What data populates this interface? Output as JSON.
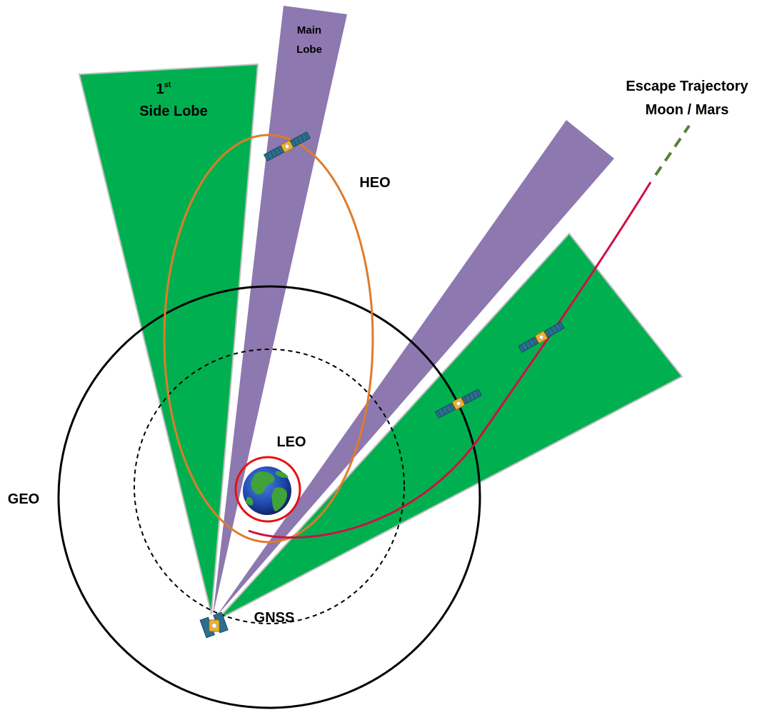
{
  "labels": {
    "main_lobe_line1": "Main",
    "main_lobe_line2": "Lobe",
    "side_lobe_number": "1",
    "side_lobe_suffix": "st",
    "side_lobe_line2": "Side Lobe",
    "escape_line1": "Escape Trajectory",
    "escape_line2": "Moon / Mars",
    "heo": "HEO",
    "leo": "LEO",
    "geo": "GEO",
    "gnss": "GNSS"
  },
  "colors": {
    "side_lobe": "#00b050",
    "main_lobe": "#8e78b0",
    "lobe_outline": "#bfbfbf",
    "heo_orbit": "#e07b2a",
    "leo_orbit": "#e81010",
    "geo_orbit": "#000000",
    "gnss_orbit": "#000000",
    "escape_solid": "#cc1144",
    "escape_dashed": "#548235",
    "earth_ocean": "#1f49b0",
    "earth_land": "#3fa33a"
  },
  "icons": [
    "satellite-icon",
    "earth-icon"
  ]
}
